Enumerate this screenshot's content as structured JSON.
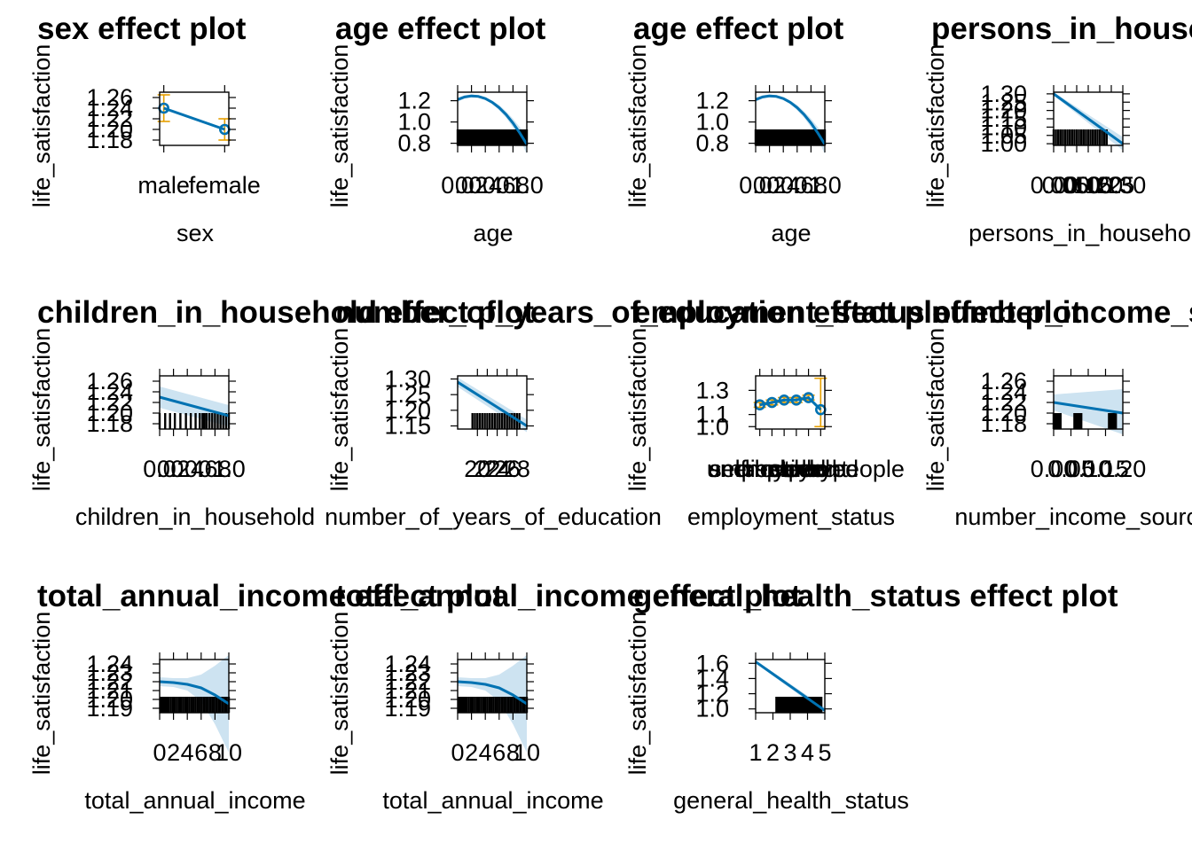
{
  "page": {
    "title": ""
  },
  "colors": {
    "line": "#0072b2",
    "band": "#cde3f1",
    "error_bar": "#e69f00",
    "rug": "#000000",
    "frame": "#000000"
  },
  "chart_data": [
    {
      "type": "line",
      "title": "sex effect plot",
      "xlabel": "sex",
      "ylabel": "life_satisfaction",
      "x_kind": "categorical",
      "x_ticks": [
        "male",
        "female"
      ],
      "y_ticks": [
        "1.26",
        "1.24",
        "1.22",
        "1.20",
        "1.18"
      ],
      "ylim": [
        1.17,
        1.27
      ],
      "categories": [
        "male",
        "female"
      ],
      "values": [
        1.24,
        1.2
      ],
      "errors": [
        [
          1.215,
          1.265
        ],
        [
          1.18,
          1.22
        ]
      ],
      "show_points": true,
      "show_band": false,
      "rug": []
    },
    {
      "type": "line",
      "title": "age effect plot",
      "xlabel": "age",
      "ylabel": "life_satisfaction",
      "x_kind": "numeric",
      "x_ticks": [
        "0.0",
        "0.2",
        "0.4",
        "0.6",
        "0.8",
        "1.0"
      ],
      "xlim": [
        0,
        1
      ],
      "y_ticks": [
        "1.2",
        "1.0",
        "0.8"
      ],
      "ylim": [
        0.78,
        1.28
      ],
      "x": [
        0,
        0.1,
        0.2,
        0.3,
        0.4,
        0.5,
        0.6,
        0.7,
        0.8,
        0.9,
        1.0
      ],
      "values": [
        1.21,
        1.235,
        1.245,
        1.24,
        1.22,
        1.185,
        1.135,
        1.07,
        0.99,
        0.895,
        0.79
      ],
      "band": [
        [
          1.19,
          1.23
        ],
        [
          1.22,
          1.25
        ],
        [
          1.23,
          1.26
        ],
        [
          1.23,
          1.25
        ],
        [
          1.21,
          1.23
        ],
        [
          1.17,
          1.2
        ],
        [
          1.11,
          1.16
        ],
        [
          1.04,
          1.1
        ],
        [
          0.95,
          1.03
        ],
        [
          0.84,
          0.95
        ],
        [
          0.7,
          0.88
        ]
      ],
      "show_points": false,
      "show_band": true,
      "rug_solid": true,
      "rug": [
        0,
        0.04,
        0.08,
        0.12,
        0.16,
        0.2,
        0.24,
        0.28,
        0.32,
        0.36,
        0.4,
        0.44,
        0.48,
        0.52,
        0.56,
        0.6,
        0.64,
        0.68,
        0.72,
        0.76,
        0.8,
        0.84,
        0.88,
        0.92,
        0.96,
        1.0
      ]
    },
    {
      "type": "line",
      "title": "age effect plot",
      "xlabel": "age",
      "ylabel": "life_satisfaction",
      "x_kind": "numeric",
      "x_ticks": [
        "0.0",
        "0.2",
        "0.4",
        "0.6",
        "0.8",
        "1.0"
      ],
      "xlim": [
        0,
        1
      ],
      "y_ticks": [
        "1.2",
        "1.0",
        "0.8"
      ],
      "ylim": [
        0.78,
        1.28
      ],
      "x": [
        0,
        0.1,
        0.2,
        0.3,
        0.4,
        0.5,
        0.6,
        0.7,
        0.8,
        0.9,
        1.0
      ],
      "values": [
        1.21,
        1.235,
        1.245,
        1.24,
        1.22,
        1.185,
        1.135,
        1.07,
        0.99,
        0.895,
        0.79
      ],
      "band": [
        [
          1.19,
          1.23
        ],
        [
          1.22,
          1.25
        ],
        [
          1.23,
          1.26
        ],
        [
          1.23,
          1.25
        ],
        [
          1.21,
          1.23
        ],
        [
          1.17,
          1.2
        ],
        [
          1.11,
          1.16
        ],
        [
          1.04,
          1.1
        ],
        [
          0.95,
          1.03
        ],
        [
          0.84,
          0.95
        ],
        [
          0.7,
          0.88
        ]
      ],
      "show_points": false,
      "show_band": true,
      "rug_solid": true,
      "rug": [
        0,
        0.04,
        0.08,
        0.12,
        0.16,
        0.2,
        0.24,
        0.28,
        0.32,
        0.36,
        0.4,
        0.44,
        0.48,
        0.52,
        0.56,
        0.6,
        0.64,
        0.68,
        0.72,
        0.76,
        0.8,
        0.84,
        0.88,
        0.92,
        0.96,
        1.0
      ]
    },
    {
      "type": "line",
      "title": "persons_in_household effect plot",
      "xlabel": "persons_in_household",
      "ylabel": "life_satisfaction",
      "x_kind": "numeric",
      "x_ticks": [
        "0.00",
        "0.05",
        "0.10",
        "0.15",
        "0.20",
        "0.25",
        "0.30"
      ],
      "xlim": [
        0,
        0.3
      ],
      "y_ticks": [
        "1.30",
        "1.25",
        "1.20",
        "1.15",
        "1.10",
        "1.05",
        "1.00"
      ],
      "ylim": [
        0.99,
        1.31
      ],
      "x": [
        0,
        0.3
      ],
      "values": [
        1.3,
        1.0
      ],
      "band": [
        [
          1.29,
          1.31
        ],
        [
          0.96,
          1.04
        ]
      ],
      "show_points": false,
      "show_band": true,
      "rug": [
        0.0,
        0.01,
        0.02,
        0.03,
        0.04,
        0.05,
        0.06,
        0.07,
        0.08,
        0.09,
        0.1,
        0.11,
        0.12,
        0.13,
        0.14,
        0.15,
        0.16,
        0.17,
        0.18,
        0.19,
        0.2,
        0.21,
        0.22,
        0.23
      ]
    },
    {
      "type": "line",
      "title": "children_in_household effect plot",
      "xlabel": "children_in_household",
      "ylabel": "life_satisfaction",
      "x_kind": "numeric",
      "x_ticks": [
        "0.0",
        "0.2",
        "0.4",
        "0.6",
        "0.8",
        "1.0"
      ],
      "xlim": [
        0,
        1
      ],
      "y_ticks": [
        "1.26",
        "1.24",
        "1.22",
        "1.20",
        "1.18"
      ],
      "ylim": [
        1.17,
        1.27
      ],
      "x": [
        0,
        1
      ],
      "values": [
        1.23,
        1.195
      ],
      "band": [
        [
          1.25,
          1.21
        ],
        [
          1.215,
          1.175
        ]
      ],
      "show_points": false,
      "show_band": true,
      "rug": [
        0,
        0.08,
        0.15,
        0.22,
        0.3,
        0.38,
        0.45,
        0.52,
        0.58,
        0.62,
        0.65,
        0.68,
        0.72,
        0.76,
        0.8,
        0.84,
        0.88,
        0.92,
        0.96,
        1.0
      ]
    },
    {
      "type": "line",
      "title": "number_of_years_of_education effect plot",
      "xlabel": "number_of_years_of_education",
      "ylabel": "life_satisfaction",
      "x_kind": "numeric",
      "x_ticks": [
        "20",
        "22",
        "24",
        "26",
        "28"
      ],
      "xlim": [
        16,
        30
      ],
      "y_ticks": [
        "1.30",
        "1.25",
        "1.20",
        "1.15"
      ],
      "ylim": [
        1.14,
        1.31
      ],
      "x": [
        16,
        30
      ],
      "values": [
        1.29,
        1.15
      ],
      "band": [
        [
          1.305,
          1.275
        ],
        [
          1.17,
          1.13
        ]
      ],
      "show_points": false,
      "show_band": true,
      "rug": [
        19,
        19.5,
        20,
        20.5,
        21,
        21.5,
        22,
        22.5,
        23,
        23.5,
        24,
        24.5,
        25,
        25.5,
        26,
        26.5,
        27,
        27.5,
        28,
        28.5
      ]
    },
    {
      "type": "line",
      "title": "employment_status effect plot",
      "xlabel": "employment_status",
      "ylabel": "life_satisfaction",
      "x_kind": "categorical",
      "x_ticks": [
        "employed",
        "unemployed",
        "self-employed",
        "retired",
        "student",
        "disabled people"
      ],
      "y_ticks": [
        "1.3",
        "1.1",
        "1.0"
      ],
      "ylim": [
        0.98,
        1.42
      ],
      "categories": [
        "employed",
        "unemployed",
        "self-employed",
        "retired",
        "student",
        "disabled people"
      ],
      "values": [
        1.18,
        1.2,
        1.22,
        1.22,
        1.24,
        1.14
      ],
      "errors": [
        [
          1.16,
          1.2
        ],
        [
          1.18,
          1.22
        ],
        [
          1.2,
          1.24
        ],
        [
          1.2,
          1.24
        ],
        [
          1.22,
          1.26
        ],
        [
          1.0,
          1.4
        ]
      ],
      "show_points": true,
      "show_band": false,
      "rug": []
    },
    {
      "type": "line",
      "title": "number_income_sources effect plot",
      "xlabel": "number_income_sources",
      "ylabel": "life_satisfaction",
      "x_kind": "numeric",
      "x_ticks": [
        "0.00",
        "0.05",
        "0.10",
        "0.15",
        "0.20"
      ],
      "xlim": [
        0,
        0.2
      ],
      "y_ticks": [
        "1.26",
        "1.24",
        "1.22",
        "1.20",
        "1.18"
      ],
      "ylim": [
        1.17,
        1.27
      ],
      "x": [
        0,
        0.2
      ],
      "values": [
        1.22,
        1.2
      ],
      "band": [
        [
          1.235,
          1.205
        ],
        [
          1.245,
          1.16
        ]
      ],
      "show_points": false,
      "show_band": true,
      "rug": [
        0.0,
        0.005,
        0.01,
        0.015,
        0.02,
        0.06,
        0.065,
        0.07,
        0.075,
        0.08,
        0.16,
        0.165,
        0.17,
        0.175,
        0.18
      ]
    },
    {
      "type": "line",
      "title": "total_annual_income effect plot",
      "xlabel": "total_annual_income",
      "ylabel": "life_satisfaction",
      "x_kind": "numeric",
      "x_ticks": [
        "0",
        "2",
        "4",
        "6",
        "8",
        "10"
      ],
      "xlim": [
        0,
        10
      ],
      "y_ticks": [
        "1.24",
        "1.23",
        "1.22",
        "1.21",
        "1.20",
        "1.19"
      ],
      "ylim": [
        1.185,
        1.245
      ],
      "x": [
        0,
        2,
        4,
        6,
        8,
        10
      ],
      "values": [
        1.22,
        1.219,
        1.217,
        1.213,
        1.205,
        1.195
      ],
      "band": [
        [
          1.225,
          1.215
        ],
        [
          1.224,
          1.214
        ],
        [
          1.224,
          1.21
        ],
        [
          1.228,
          1.198
        ],
        [
          1.238,
          1.172
        ],
        [
          1.25,
          1.14
        ]
      ],
      "show_points": false,
      "show_band": true,
      "rug": [
        0.2,
        0.4,
        0.6,
        0.8,
        1.0,
        1.3,
        1.6,
        1.9,
        2.2,
        2.5,
        2.8,
        3.1,
        3.4,
        3.7,
        4.0,
        4.3,
        4.6,
        4.9,
        5.2,
        5.5,
        5.8,
        6.1,
        6.4,
        6.7,
        7.0,
        7.3,
        7.6,
        7.9,
        8.2,
        8.5,
        8.8,
        9.1,
        9.4,
        9.7,
        10.0
      ]
    },
    {
      "type": "line",
      "title": "total_annual_income effect plot",
      "xlabel": "total_annual_income",
      "ylabel": "life_satisfaction",
      "x_kind": "numeric",
      "x_ticks": [
        "0",
        "2",
        "4",
        "6",
        "8",
        "10"
      ],
      "xlim": [
        0,
        10
      ],
      "y_ticks": [
        "1.24",
        "1.23",
        "1.22",
        "1.21",
        "1.20",
        "1.19"
      ],
      "ylim": [
        1.185,
        1.245
      ],
      "x": [
        0,
        2,
        4,
        6,
        8,
        10
      ],
      "values": [
        1.22,
        1.219,
        1.217,
        1.213,
        1.205,
        1.195
      ],
      "band": [
        [
          1.225,
          1.215
        ],
        [
          1.224,
          1.214
        ],
        [
          1.224,
          1.21
        ],
        [
          1.228,
          1.198
        ],
        [
          1.238,
          1.172
        ],
        [
          1.25,
          1.14
        ]
      ],
      "show_points": false,
      "show_band": true,
      "rug": [
        0.2,
        0.4,
        0.6,
        0.8,
        1.0,
        1.3,
        1.6,
        1.9,
        2.2,
        2.5,
        2.8,
        3.1,
        3.4,
        3.7,
        4.0,
        4.3,
        4.6,
        4.9,
        5.2,
        5.5,
        5.8,
        6.1,
        6.4,
        6.7,
        7.0,
        7.3,
        7.6,
        7.9,
        8.2,
        8.5,
        8.8,
        9.1,
        9.4,
        9.7,
        10.0
      ]
    },
    {
      "type": "line",
      "title": "general_health_status effect plot",
      "xlabel": "general_health_status",
      "ylabel": "life_satisfaction",
      "x_kind": "numeric",
      "x_ticks": [
        "1",
        "2",
        "3",
        "4",
        "5"
      ],
      "xlim": [
        1,
        5
      ],
      "y_ticks": [
        "1.6",
        "1.4",
        "1.2",
        "1.0"
      ],
      "ylim": [
        0.95,
        1.65
      ],
      "x": [
        1,
        5
      ],
      "values": [
        1.62,
        0.98
      ],
      "band": [
        [
          1.64,
          1.6
        ],
        [
          1.02,
          0.94
        ]
      ],
      "show_points": false,
      "show_band": true,
      "rug": [
        2.2,
        2.3,
        2.4,
        2.5,
        2.6,
        2.7,
        2.8,
        2.9,
        3.0,
        3.1,
        3.2,
        3.3,
        3.4,
        3.5,
        3.6,
        3.7,
        3.8,
        3.9,
        4.0,
        4.1,
        4.2,
        4.3,
        4.4,
        4.5,
        4.6,
        4.7,
        4.8
      ]
    }
  ]
}
